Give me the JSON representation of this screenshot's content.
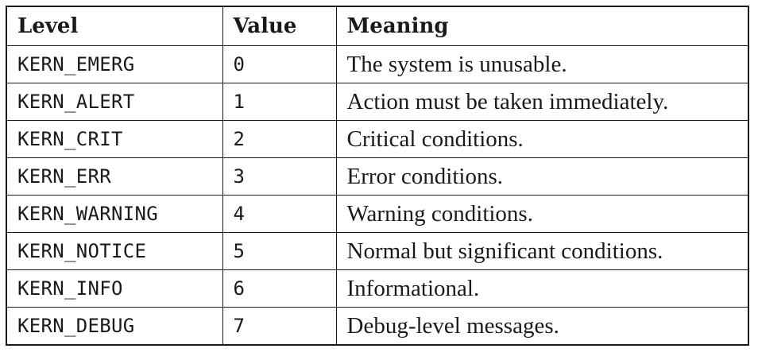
{
  "table": {
    "headers": {
      "level": "Level",
      "value": "Value",
      "meaning": "Meaning"
    },
    "rows": [
      {
        "level": "KERN_EMERG",
        "value": "0",
        "meaning": "The system is unusable."
      },
      {
        "level": "KERN_ALERT",
        "value": "1",
        "meaning": "Action must be taken immediately."
      },
      {
        "level": "KERN_CRIT",
        "value": "2",
        "meaning": "Critical conditions."
      },
      {
        "level": "KERN_ERR",
        "value": "3",
        "meaning": "Error conditions."
      },
      {
        "level": "KERN_WARNING",
        "value": "4",
        "meaning": "Warning conditions."
      },
      {
        "level": "KERN_NOTICE",
        "value": "5",
        "meaning": "Normal but significant conditions."
      },
      {
        "level": "KERN_INFO",
        "value": "6",
        "meaning": "Informational."
      },
      {
        "level": "KERN_DEBUG",
        "value": "7",
        "meaning": "Debug-level messages."
      }
    ]
  }
}
